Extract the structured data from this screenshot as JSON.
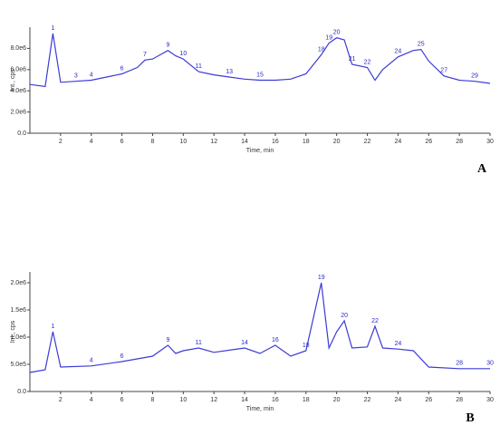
{
  "chart_data": [
    {
      "type": "line",
      "panel": "A",
      "xlabel": "Time, min",
      "ylabel": "Int., cps",
      "xlim": [
        0,
        30
      ],
      "xticks": [
        2,
        4,
        6,
        8,
        10,
        12,
        14,
        16,
        18,
        20,
        22,
        24,
        26,
        28,
        30
      ],
      "ylim": [
        0,
        10000000.0
      ],
      "yticks": [
        {
          "value": 0,
          "label": "0.0"
        },
        {
          "value": 2000000.0,
          "label": "2.0e6"
        },
        {
          "value": 4000000.0,
          "label": "4.0e6"
        },
        {
          "value": 6000000.0,
          "label": "6.0e6"
        },
        {
          "value": 8000000.0,
          "label": "8.0e6"
        }
      ],
      "series": [
        {
          "color": "#3b3bd6",
          "x": [
            0,
            1,
            1.5,
            2,
            3,
            4,
            5,
            6,
            7,
            7.5,
            8,
            9,
            9.5,
            10,
            11,
            12,
            13,
            14,
            15,
            16,
            17,
            18,
            19,
            19.5,
            20,
            20.5,
            21,
            22,
            22.5,
            23,
            24,
            25,
            25.5,
            26,
            27,
            28,
            29,
            30
          ],
          "values": [
            4600000.0,
            4400000.0,
            9400000.0,
            4800000.0,
            4900000.0,
            5000000.0,
            5300000.0,
            5600000.0,
            6200000.0,
            6900000.0,
            7000000.0,
            7800000.0,
            7300000.0,
            7000000.0,
            5800000.0,
            5500000.0,
            5300000.0,
            5100000.0,
            5000000.0,
            5000000.0,
            5100000.0,
            5600000.0,
            7400000.0,
            8500000.0,
            9000000.0,
            8800000.0,
            6500000.0,
            6200000.0,
            5000000.0,
            6000000.0,
            7200000.0,
            7800000.0,
            7900000.0,
            6800000.0,
            5400000.0,
            5000000.0,
            4900000.0,
            4700000.0
          ]
        }
      ],
      "annotations": [
        {
          "x": 1.5,
          "label": "1"
        },
        {
          "x": 3,
          "label": "3"
        },
        {
          "x": 4,
          "label": "4"
        },
        {
          "x": 6,
          "label": "6"
        },
        {
          "x": 7.5,
          "label": "7"
        },
        {
          "x": 9,
          "label": "9"
        },
        {
          "x": 10,
          "label": "10"
        },
        {
          "x": 11,
          "label": "11"
        },
        {
          "x": 13,
          "label": "13"
        },
        {
          "x": 15,
          "label": "15"
        },
        {
          "x": 19,
          "label": "18"
        },
        {
          "x": 19.5,
          "label": "19"
        },
        {
          "x": 20,
          "label": "20"
        },
        {
          "x": 21,
          "label": "21"
        },
        {
          "x": 22,
          "label": "22"
        },
        {
          "x": 24,
          "label": "24"
        },
        {
          "x": 25.5,
          "label": "25"
        },
        {
          "x": 27,
          "label": "27"
        },
        {
          "x": 29,
          "label": "29"
        }
      ]
    },
    {
      "type": "line",
      "panel": "B",
      "xlabel": "Time, min",
      "ylabel": "Int., cps",
      "xlim": [
        0,
        30
      ],
      "xticks": [
        2,
        4,
        6,
        8,
        10,
        12,
        14,
        16,
        18,
        20,
        22,
        24,
        26,
        28,
        30
      ],
      "ylim": [
        0,
        2200000.0
      ],
      "yticks": [
        {
          "value": 0,
          "label": "0.0"
        },
        {
          "value": 500000.0,
          "label": "5.0e5"
        },
        {
          "value": 1000000.0,
          "label": "1.0e6"
        },
        {
          "value": 1500000.0,
          "label": "1.5e6"
        },
        {
          "value": 2000000.0,
          "label": "2.0e6"
        }
      ],
      "series": [
        {
          "color": "#3b3bd6",
          "x": [
            0,
            1,
            1.5,
            2,
            4,
            6,
            8,
            9,
            9.5,
            10,
            11,
            12,
            14,
            15,
            16,
            17,
            18,
            19,
            19.5,
            20,
            20.5,
            21,
            22,
            22.5,
            23,
            24,
            25,
            26,
            28,
            30
          ],
          "values": [
            350000.0,
            400000.0,
            1100000.0,
            450000.0,
            470000.0,
            550000.0,
            650000.0,
            850000.0,
            700000.0,
            750000.0,
            800000.0,
            720000.0,
            800000.0,
            700000.0,
            850000.0,
            650000.0,
            750000.0,
            2000000.0,
            800000.0,
            1100000.0,
            1300000.0,
            800000.0,
            820000.0,
            1200000.0,
            800000.0,
            780000.0,
            750000.0,
            450000.0,
            420000.0,
            420000.0
          ]
        }
      ],
      "annotations": [
        {
          "x": 1.5,
          "label": "1"
        },
        {
          "x": 4,
          "label": "4"
        },
        {
          "x": 6,
          "label": "6"
        },
        {
          "x": 9,
          "label": "9"
        },
        {
          "x": 11,
          "label": "11"
        },
        {
          "x": 14,
          "label": "14"
        },
        {
          "x": 16,
          "label": "16"
        },
        {
          "x": 18,
          "label": "18"
        },
        {
          "x": 19,
          "label": "19"
        },
        {
          "x": 20.5,
          "label": "20"
        },
        {
          "x": 22.5,
          "label": "22"
        },
        {
          "x": 24,
          "label": "24"
        },
        {
          "x": 28,
          "label": "28"
        },
        {
          "x": 30,
          "label": "30"
        }
      ]
    }
  ]
}
